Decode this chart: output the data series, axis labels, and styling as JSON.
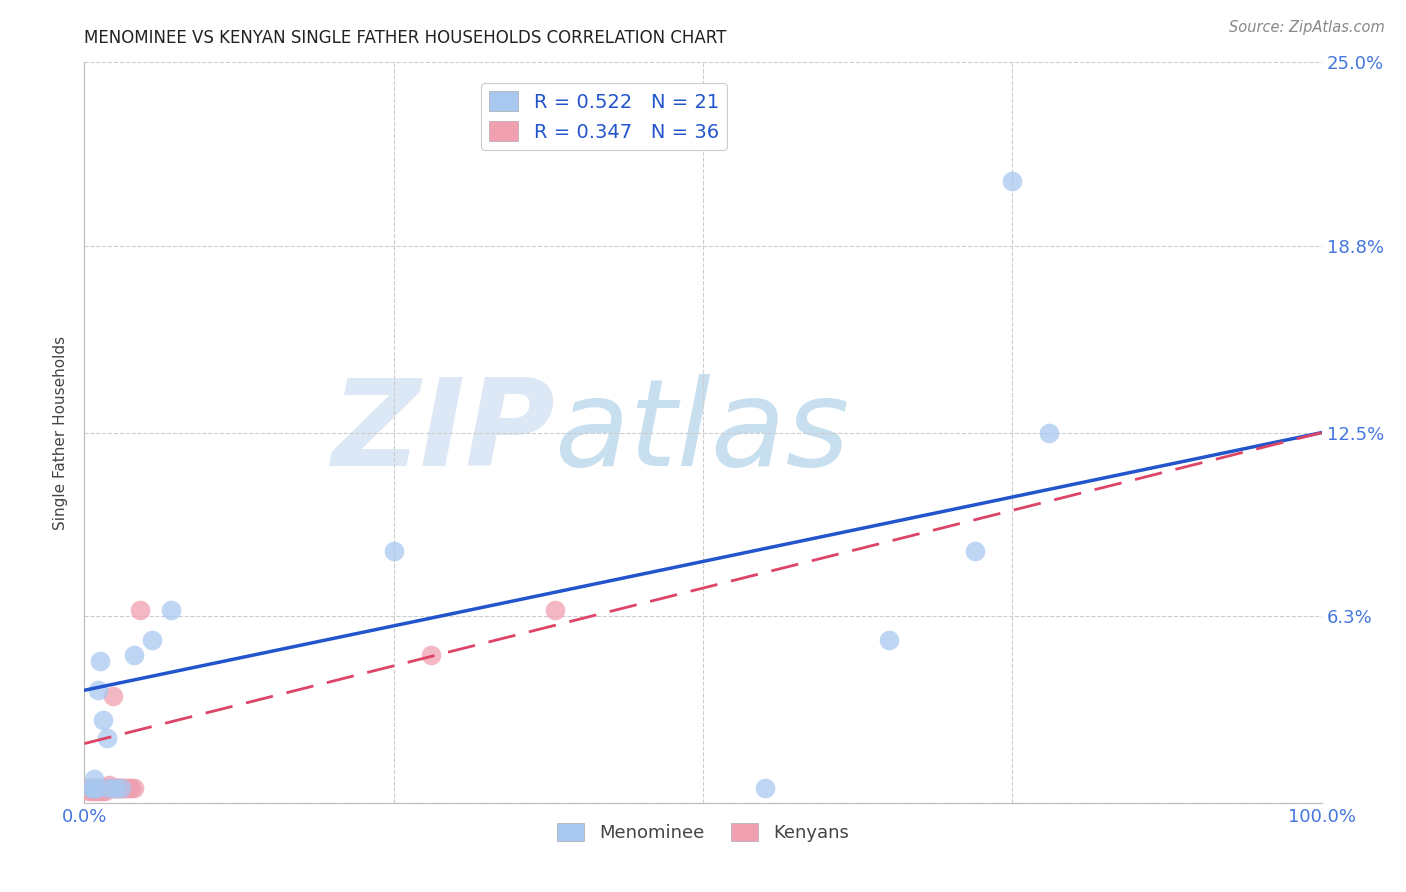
{
  "title": "MENOMINEE VS KENYAN SINGLE FATHER HOUSEHOLDS CORRELATION CHART",
  "source": "Source: ZipAtlas.com",
  "ylabel": "Single Father Households",
  "xlim": [
    0,
    1.0
  ],
  "ylim": [
    0,
    0.25
  ],
  "ytick_positions": [
    0.0,
    0.063,
    0.125,
    0.188,
    0.25
  ],
  "ytick_labels": [
    "",
    "6.3%",
    "12.5%",
    "18.8%",
    "25.0%"
  ],
  "menominee_R": 0.522,
  "menominee_N": 21,
  "kenyan_R": 0.347,
  "kenyan_N": 36,
  "menominee_color": "#a8c8f0",
  "kenyan_color": "#f0a0b0",
  "menominee_line_color": "#2255cc",
  "kenyan_line_color": "#dd4466",
  "background_color": "#ffffff",
  "grid_color": "#cccccc",
  "title_color": "#222222",
  "axis_label_color": "#444444",
  "tick_label_color": "#4477dd",
  "watermark_zip_color": "#dce8f5",
  "watermark_atlas_color": "#c8dff0",
  "menominee_x": [
    0.005,
    0.007,
    0.008,
    0.009,
    0.01,
    0.011,
    0.013,
    0.015,
    0.018,
    0.02,
    0.025,
    0.03,
    0.04,
    0.055,
    0.07,
    0.25,
    0.55,
    0.65,
    0.72,
    0.75,
    0.78
  ],
  "menominee_y": [
    0.005,
    0.005,
    0.008,
    0.005,
    0.005,
    0.038,
    0.048,
    0.028,
    0.022,
    0.005,
    0.005,
    0.005,
    0.05,
    0.055,
    0.065,
    0.085,
    0.005,
    0.055,
    0.085,
    0.21,
    0.125
  ],
  "kenyan_x": [
    0.003,
    0.004,
    0.005,
    0.006,
    0.007,
    0.008,
    0.009,
    0.01,
    0.011,
    0.012,
    0.013,
    0.014,
    0.015,
    0.016,
    0.017,
    0.018,
    0.019,
    0.02,
    0.021,
    0.022,
    0.023,
    0.024,
    0.025,
    0.026,
    0.027,
    0.028,
    0.029,
    0.03,
    0.032,
    0.034,
    0.036,
    0.038,
    0.04,
    0.045,
    0.28,
    0.38
  ],
  "kenyan_y": [
    0.005,
    0.004,
    0.005,
    0.004,
    0.005,
    0.004,
    0.005,
    0.004,
    0.005,
    0.004,
    0.005,
    0.004,
    0.005,
    0.005,
    0.004,
    0.005,
    0.005,
    0.006,
    0.005,
    0.005,
    0.036,
    0.005,
    0.005,
    0.005,
    0.005,
    0.005,
    0.005,
    0.005,
    0.005,
    0.005,
    0.005,
    0.005,
    0.005,
    0.065,
    0.05,
    0.065
  ],
  "men_line_x0": 0.0,
  "men_line_y0": 0.038,
  "men_line_x1": 1.0,
  "men_line_y1": 0.125,
  "ken_line_x0": 0.0,
  "ken_line_y0": 0.02,
  "ken_line_x1": 1.0,
  "ken_line_y1": 0.125
}
